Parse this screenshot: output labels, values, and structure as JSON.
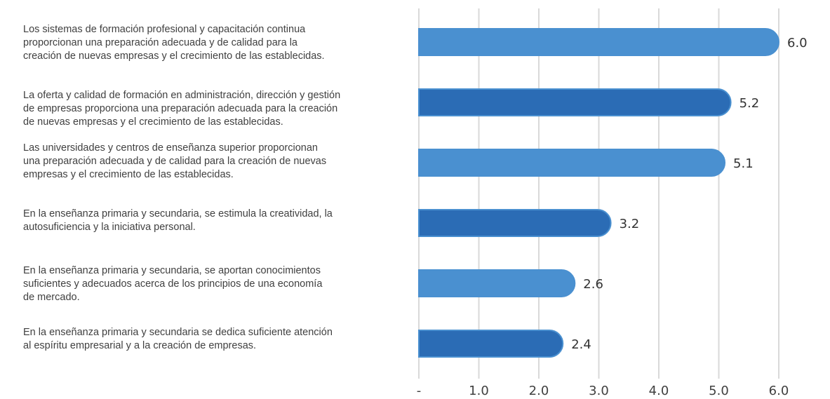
{
  "chart_data": {
    "type": "bar",
    "orientation": "horizontal",
    "categories": [
      "Los sistemas de formación profesional y capacitación continua\nproporcionan una preparación adecuada y de calidad para la\ncreación de nuevas empresas y el crecimiento de las establecidas.",
      "La oferta y calidad de formación en administración, dirección y gestión\nde empresas proporciona una preparación adecuada para la creación\nde nuevas empresas y el crecimiento de las establecidas.",
      "Las universidades y centros de enseñanza superior proporcionan\nuna preparación adecuada y de calidad para la creación de nuevas\nempresas y el crecimiento de las establecidas.",
      "En la enseñanza primaria y secundaria, se estimula la creatividad, la\nautosuficiencia y la iniciativa personal.",
      "En la enseñanza primaria y secundaria, se aportan conocimientos\nsuficientes y adecuados acerca de los principios de una economía\nde mercado.",
      "En la enseñanza primaria y secundaria se dedica suficiente atención\nal espíritu empresarial y a la creación de empresas."
    ],
    "values": [
      6.0,
      5.2,
      5.1,
      3.2,
      2.6,
      2.4
    ],
    "value_labels": [
      "6.0",
      "5.2",
      "5.1",
      "3.2",
      "2.6",
      "2.4"
    ],
    "bar_colors": [
      "#4a90d0",
      "#2b6cb5",
      "#4a90d0",
      "#2b6cb5",
      "#4a90d0",
      "#2b6cb5"
    ],
    "xlim": [
      0,
      6
    ],
    "x_ticks": [
      0,
      1,
      2,
      3,
      4,
      5,
      6
    ],
    "x_tick_labels": [
      "-",
      "1.0",
      "2.0",
      "3.0",
      "4.0",
      "5.0",
      "6.0"
    ],
    "grid": true,
    "gridline_color": "#d9d9d9",
    "label_color": "#404040",
    "legend": "none"
  }
}
